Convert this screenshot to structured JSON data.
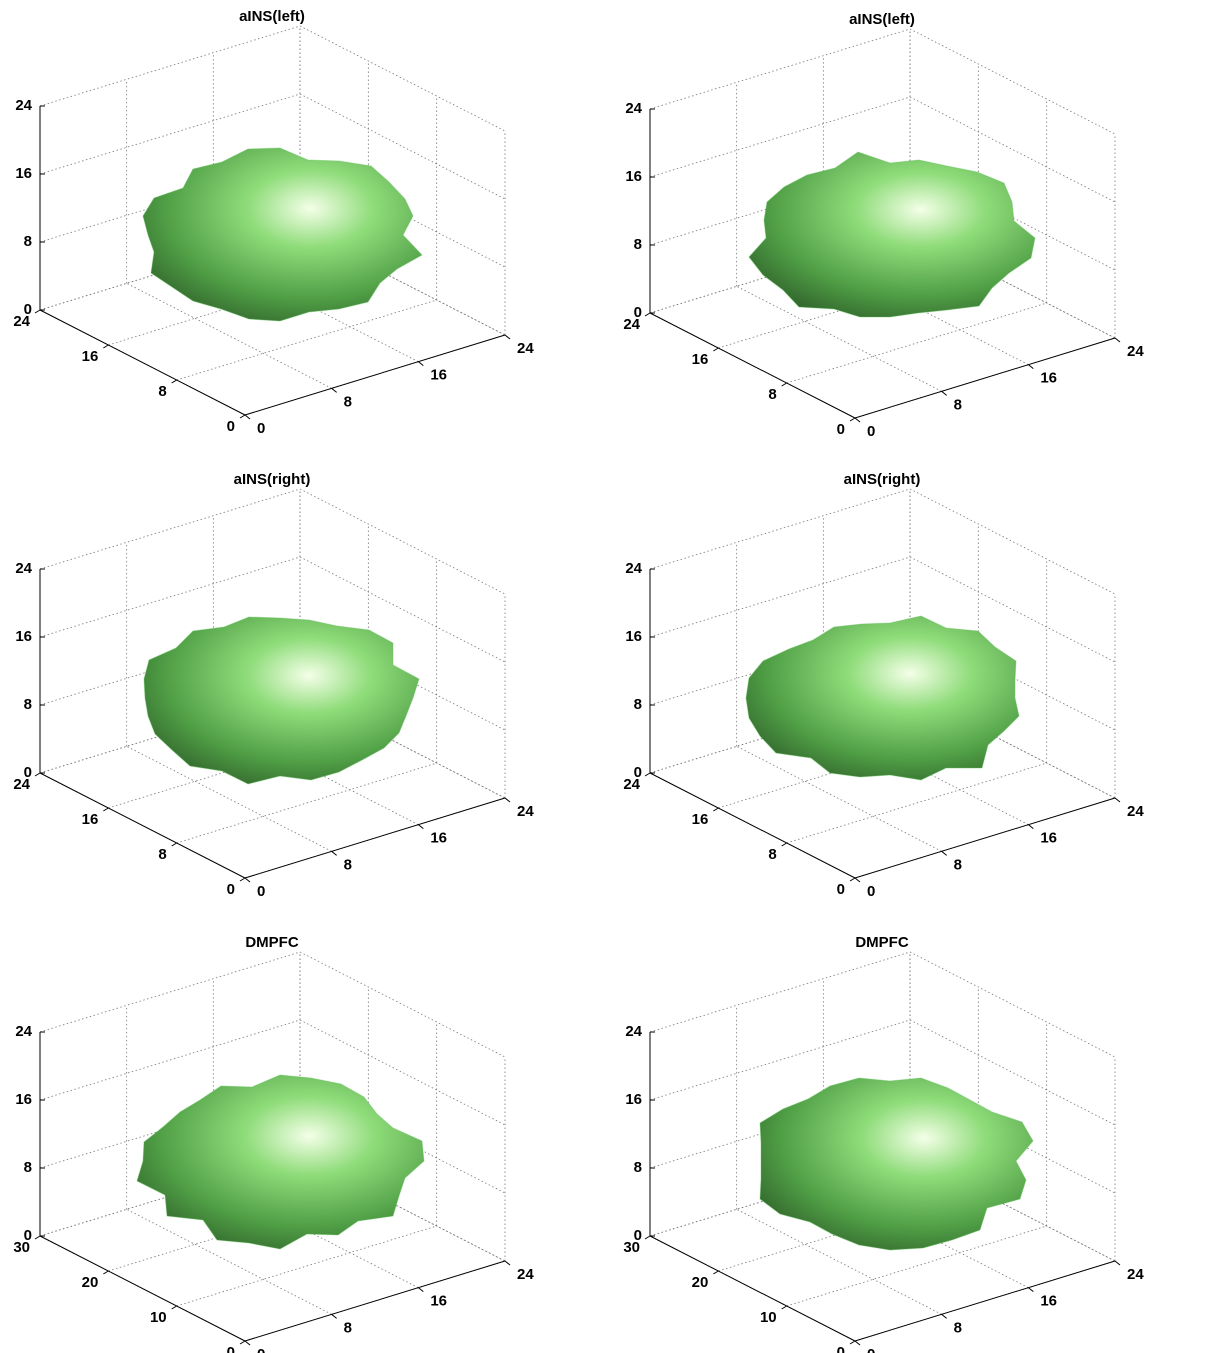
{
  "chart_data": [
    {
      "type": "surface3d",
      "title": "aINS(left)",
      "color": "#5fc05a",
      "grid": true,
      "xlim": [
        0,
        24
      ],
      "xticks": [
        0,
        8,
        16,
        24
      ],
      "ylim": [
        0,
        24
      ],
      "yticks": [
        0,
        8,
        16,
        24
      ],
      "zlim": [
        0,
        24
      ],
      "zticks": [
        0,
        8,
        16,
        24
      ]
    },
    {
      "type": "surface3d",
      "title": "aINS(left)",
      "color": "#5fc05a",
      "grid": true,
      "xlim": [
        0,
        24
      ],
      "xticks": [
        0,
        8,
        16,
        24
      ],
      "ylim": [
        0,
        24
      ],
      "yticks": [
        0,
        8,
        16,
        24
      ],
      "zlim": [
        0,
        24
      ],
      "zticks": [
        0,
        8,
        16,
        24
      ]
    },
    {
      "type": "surface3d",
      "title": "aINS(right)",
      "color": "#5fc05a",
      "grid": true,
      "xlim": [
        0,
        24
      ],
      "xticks": [
        0,
        8,
        16,
        24
      ],
      "ylim": [
        0,
        24
      ],
      "yticks": [
        0,
        8,
        16,
        24
      ],
      "zlim": [
        0,
        24
      ],
      "zticks": [
        0,
        8,
        16,
        24
      ]
    },
    {
      "type": "surface3d",
      "title": "aINS(right)",
      "color": "#5fc05a",
      "grid": true,
      "xlim": [
        0,
        24
      ],
      "xticks": [
        0,
        8,
        16,
        24
      ],
      "ylim": [
        0,
        24
      ],
      "yticks": [
        0,
        8,
        16,
        24
      ],
      "zlim": [
        0,
        24
      ],
      "zticks": [
        0,
        8,
        16,
        24
      ]
    },
    {
      "type": "surface3d",
      "title": "DMPFC",
      "color": "#5fc05a",
      "grid": true,
      "xlim": [
        0,
        24
      ],
      "xticks": [
        0,
        8,
        16,
        24
      ],
      "ylim": [
        0,
        30
      ],
      "yticks": [
        0,
        10,
        20,
        30
      ],
      "zlim": [
        0,
        24
      ],
      "zticks": [
        0,
        8,
        16,
        24
      ]
    },
    {
      "type": "surface3d",
      "title": "DMPFC",
      "color": "#5fc05a",
      "grid": true,
      "xlim": [
        0,
        24
      ],
      "xticks": [
        0,
        8,
        16,
        24
      ],
      "ylim": [
        0,
        30
      ],
      "yticks": [
        0,
        10,
        20,
        30
      ],
      "zlim": [
        0,
        24
      ],
      "zticks": [
        0,
        8,
        16,
        24
      ]
    }
  ]
}
